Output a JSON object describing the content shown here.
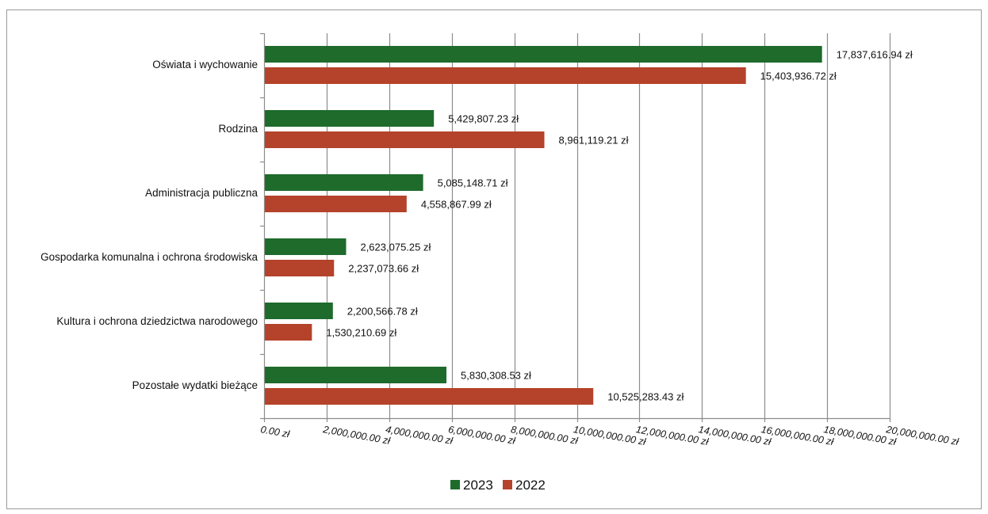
{
  "chart_data": {
    "type": "bar",
    "orientation": "horizontal",
    "title": "",
    "xlabel": "",
    "ylabel": "",
    "xlim": [
      0,
      20000000
    ],
    "grid": true,
    "legend_placement": "bottom",
    "categories": [
      "Oświata i wychowanie",
      "Rodzina",
      "Administracja publiczna",
      "Gospodarka komunalna i ochrona środowiska",
      "Kultura i ochrona dziedzictwa narodowego",
      "Pozostałe wydatki bieżące"
    ],
    "series": [
      {
        "name": "2023",
        "color": "#1e6b2c",
        "values": [
          17837616.94,
          5429807.23,
          5085148.71,
          2623075.25,
          2200566.78,
          5830308.53
        ],
        "labels": [
          "17,837,616.94 zł",
          "5,429,807.23 zł",
          "5,085,148.71 zł",
          "2,623,075.25 zł",
          "2,200,566.78 zł",
          "5,830,308.53 zł"
        ]
      },
      {
        "name": "2022",
        "color": "#b5422a",
        "values": [
          15403936.72,
          8961119.21,
          4558867.99,
          2237073.66,
          1530210.69,
          10525283.43
        ],
        "labels": [
          "15,403,936.72 zł",
          "8,961,119.21 zł",
          "4,558,867.99 zł",
          "2,237,073.66 zł",
          "1,530,210.69 zł",
          "10,525,283.43 zł"
        ]
      }
    ],
    "x_ticks": [
      0,
      2000000,
      4000000,
      6000000,
      8000000,
      10000000,
      12000000,
      14000000,
      16000000,
      18000000,
      20000000
    ],
    "x_tick_labels": [
      "0.00 zł",
      "2,000,000.00 zł",
      "4,000,000.00 zł",
      "6,000,000.00 zł",
      "8,000,000.00 zł",
      "10,000,000.00 zł",
      "12,000,000.00 zł",
      "14,000,000.00 zł",
      "16,000,000.00 zł",
      "18,000,000.00 zł",
      "20,000,000.00 zł"
    ]
  }
}
